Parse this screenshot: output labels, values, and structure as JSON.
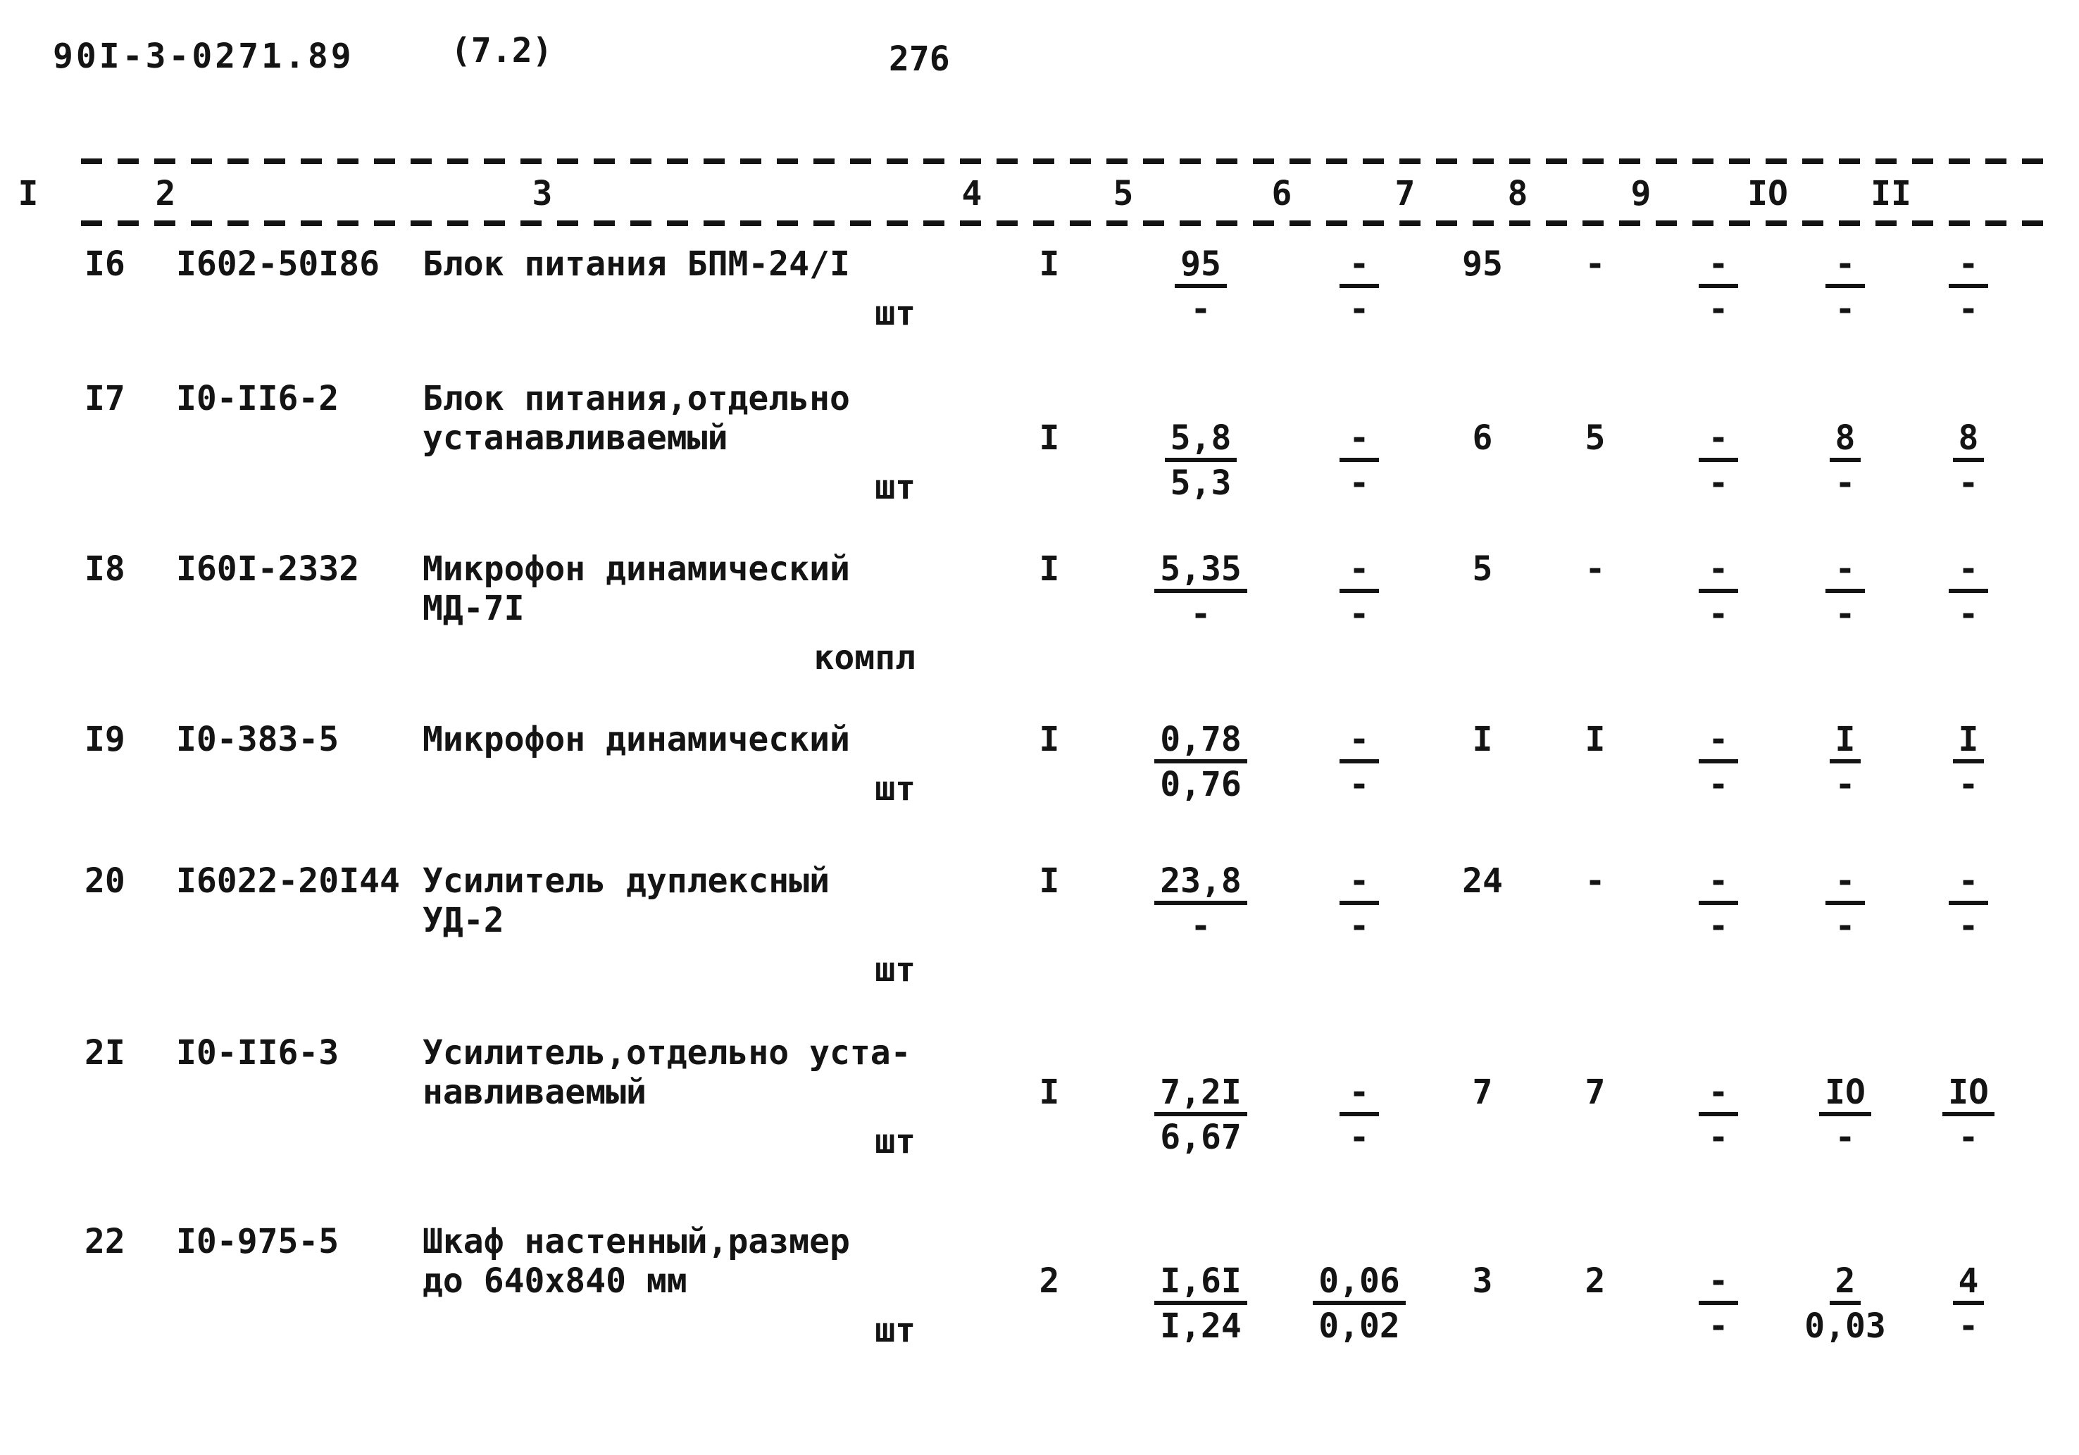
{
  "page": {
    "doc_number": "90I-3-0271.89",
    "doc_suffix": "(7.2)",
    "page_number": "276"
  },
  "table": {
    "column_headers": [
      "I",
      "2",
      "3",
      "4",
      "5",
      "6",
      "7",
      "8",
      "9",
      "IO",
      "II"
    ],
    "rows": [
      {
        "num": "I6",
        "code": "I602-50I86",
        "name_lines": [
          "Блок питания БПМ-24/I"
        ],
        "unit": "шт",
        "c4": "I",
        "c5": {
          "top": "95",
          "bottom": "-"
        },
        "c6": {
          "top": "-",
          "bottom": "-"
        },
        "c7": "95",
        "c8": "-",
        "c9": {
          "top": "-",
          "bottom": "-"
        },
        "c10": {
          "top": "-",
          "bottom": "-"
        },
        "c11": {
          "top": "-",
          "bottom": "-"
        }
      },
      {
        "num": "I7",
        "code": "I0-II6-2",
        "name_lines": [
          "Блок питания,отдельно",
          "устанавливаемый"
        ],
        "unit": "шт",
        "c4": "I",
        "c5": {
          "top": "5,8",
          "bottom": "5,3"
        },
        "c6": {
          "top": "-",
          "bottom": "-"
        },
        "c7": "6",
        "c8": "5",
        "c9": {
          "top": "-",
          "bottom": "-"
        },
        "c10": {
          "top": "8",
          "bottom": "-"
        },
        "c11": {
          "top": "8",
          "bottom": "-"
        }
      },
      {
        "num": "I8",
        "code": "I60I-2332",
        "name_lines": [
          "Микрофон динамический МД-7I"
        ],
        "unit": "компл",
        "c4": "I",
        "c5": {
          "top": "5,35",
          "bottom": "-"
        },
        "c6": {
          "top": "-",
          "bottom": "-"
        },
        "c7": "5",
        "c8": "-",
        "c9": {
          "top": "-",
          "bottom": "-"
        },
        "c10": {
          "top": "-",
          "bottom": "-"
        },
        "c11": {
          "top": "-",
          "bottom": "-"
        }
      },
      {
        "num": "I9",
        "code": "I0-383-5",
        "name_lines": [
          "Микрофон динамический"
        ],
        "unit": "шт",
        "c4": "I",
        "c5": {
          "top": "0,78",
          "bottom": "0,76"
        },
        "c6": {
          "top": "-",
          "bottom": "-"
        },
        "c7": "I",
        "c8": "I",
        "c9": {
          "top": "-",
          "bottom": "-"
        },
        "c10": {
          "top": "I",
          "bottom": "-"
        },
        "c11": {
          "top": "I",
          "bottom": "-"
        }
      },
      {
        "num": "20",
        "code": "I6022-20I44",
        "name_lines": [
          "Усилитель дуплексный УД-2"
        ],
        "unit": "шт",
        "c4": "I",
        "c5": {
          "top": "23,8",
          "bottom": "-"
        },
        "c6": {
          "top": "-",
          "bottom": "-"
        },
        "c7": "24",
        "c8": "-",
        "c9": {
          "top": "-",
          "bottom": "-"
        },
        "c10": {
          "top": "-",
          "bottom": "-"
        },
        "c11": {
          "top": "-",
          "bottom": "-"
        }
      },
      {
        "num": "2I",
        "code": "I0-II6-3",
        "name_lines": [
          "Усилитель,отдельно уста-",
          "навливаемый"
        ],
        "unit": "шт",
        "c4": "I",
        "c5": {
          "top": "7,2I",
          "bottom": "6,67"
        },
        "c6": {
          "top": "-",
          "bottom": "-"
        },
        "c7": "7",
        "c8": "7",
        "c9": {
          "top": "-",
          "bottom": "-"
        },
        "c10": {
          "top": "IO",
          "bottom": "-"
        },
        "c11": {
          "top": "IO",
          "bottom": "-"
        }
      },
      {
        "num": "22",
        "code": "I0-975-5",
        "name_lines": [
          "Шкаф настенный,размер",
          "до 640х840 мм"
        ],
        "unit": "шт",
        "c4": "2",
        "c5": {
          "top": "I,6I",
          "bottom": "I,24"
        },
        "c6": {
          "top": "0,06",
          "bottom": "0,02"
        },
        "c7": "3",
        "c8": "2",
        "c9": {
          "top": "-",
          "bottom": "-"
        },
        "c10": {
          "top": "2",
          "bottom": "0,03"
        },
        "c11": {
          "top": "4",
          "bottom": "-"
        }
      }
    ]
  }
}
